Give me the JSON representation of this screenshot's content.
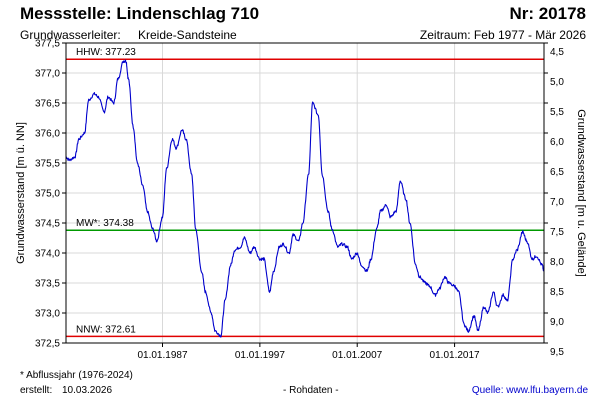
{
  "header": {
    "title": "Messstelle: Lindenschlag 710",
    "station_number": "Nr: 20178",
    "aquifer_label": "Grundwasserleiter:",
    "aquifer_value": "Kreide-Sandsteine",
    "period": "Zeitraum: Feb 1977 - Mär 2026"
  },
  "footer": {
    "footnote": "* Abflussjahr (1976-2024)",
    "created_label": "erstellt:",
    "created_value": "10.03.2026",
    "rawdata": "- Rohdaten -",
    "source": "Quelle: www.lfu.bayern.de"
  },
  "colors": {
    "series": "#0000cc",
    "hhw_nnw": "#e00000",
    "mw": "#009900",
    "grid": "#d9d9d9",
    "axis": "#000000"
  },
  "chart_data": {
    "type": "line",
    "ylabel_left": "Grundwasserstand [m ü. NN]",
    "ylabel_right": "Grundwasserstand [m u. Gelände]",
    "ylim_left": [
      372.5,
      377.5
    ],
    "yticks_left": [
      "377,5",
      "377,0",
      "376,5",
      "376,0",
      "375,5",
      "375,0",
      "374,5",
      "374,0",
      "373,5",
      "373,0",
      "372,5"
    ],
    "yticks_right": [
      "4,5",
      "5,0",
      "5,5",
      "6,0",
      "6,5",
      "7,0",
      "7,5",
      "8,0",
      "8,5",
      "9,0",
      "9,5"
    ],
    "xlim": [
      "1977-02-01",
      "2026-03-10"
    ],
    "xticks": [
      "01.01.1987",
      "01.01.1997",
      "01.01.2007",
      "01.01.2017"
    ],
    "grid": true,
    "reference_lines": [
      {
        "name": "HHW",
        "label": "HHW: 377.23",
        "value": 377.23
      },
      {
        "name": "MW*",
        "label": "MW*: 374.38",
        "value": 374.38
      },
      {
        "name": "NNW",
        "label": "NNW: 372.61",
        "value": 372.61
      }
    ],
    "series": [
      {
        "x": [
          "1977-02-01",
          "1977-06-01",
          "1978-01-01",
          "1978-06-01",
          "1979-01-01",
          "1979-06-01",
          "1980-01-01",
          "1980-06-01",
          "1981-01-01",
          "1981-06-01",
          "1982-01-01",
          "1982-06-01",
          "1983-01-01",
          "1983-04-01",
          "1983-07-01",
          "1984-01-01",
          "1984-06-01",
          "1985-01-01",
          "1985-06-01",
          "1986-01-01",
          "1986-06-01",
          "1987-01-01",
          "1987-06-01",
          "1988-01-01",
          "1988-06-01",
          "1989-01-01",
          "1989-06-01",
          "1990-01-01",
          "1990-06-01",
          "1991-01-01",
          "1991-06-01",
          "1992-01-01",
          "1992-06-01",
          "1993-01-01",
          "1993-06-01",
          "1994-01-01",
          "1994-06-01",
          "1995-01-01",
          "1995-06-01",
          "1996-01-01",
          "1996-06-01",
          "1997-01-01",
          "1997-06-01",
          "1998-01-01",
          "1998-06-01",
          "1999-01-01",
          "1999-06-01",
          "2000-01-01",
          "2000-06-01",
          "2001-01-01",
          "2001-06-01",
          "2002-01-01",
          "2002-06-01",
          "2003-01-01",
          "2003-06-01",
          "2004-01-01",
          "2004-06-01",
          "2005-01-01",
          "2005-06-01",
          "2006-01-01",
          "2006-06-01",
          "2007-01-01",
          "2007-06-01",
          "2008-01-01",
          "2008-06-01",
          "2009-01-01",
          "2009-06-01",
          "2010-01-01",
          "2010-06-01",
          "2011-01-01",
          "2011-06-01",
          "2012-01-01",
          "2012-06-01",
          "2013-01-01",
          "2013-06-01",
          "2014-01-01",
          "2014-06-01",
          "2015-01-01",
          "2015-06-01",
          "2016-01-01",
          "2016-06-01",
          "2017-01-01",
          "2017-06-01",
          "2018-01-01",
          "2018-06-01",
          "2019-01-01",
          "2019-06-01",
          "2020-01-01",
          "2020-06-01",
          "2021-01-01",
          "2021-06-01",
          "2022-01-01",
          "2022-06-01",
          "2023-01-01",
          "2023-06-01",
          "2024-01-01",
          "2024-06-01",
          "2025-01-01",
          "2025-06-01",
          "2026-01-01",
          "2026-03-01"
        ],
        "values": [
          375.6,
          375.55,
          375.6,
          375.9,
          376.0,
          376.55,
          376.65,
          376.6,
          376.35,
          376.6,
          376.5,
          376.9,
          377.2,
          377.2,
          376.9,
          376.1,
          375.5,
          375.1,
          374.7,
          374.4,
          374.2,
          374.6,
          375.4,
          375.9,
          375.75,
          376.05,
          375.9,
          375.3,
          374.4,
          373.7,
          373.35,
          373.0,
          372.7,
          372.62,
          373.2,
          373.8,
          374.05,
          374.1,
          374.25,
          374.0,
          374.1,
          373.9,
          373.9,
          373.35,
          373.7,
          374.1,
          374.15,
          374.0,
          374.3,
          374.2,
          374.5,
          375.3,
          376.5,
          376.3,
          375.3,
          374.7,
          374.4,
          374.1,
          374.15,
          374.1,
          373.9,
          374.0,
          373.8,
          373.7,
          373.9,
          374.4,
          374.7,
          374.8,
          374.6,
          374.7,
          375.2,
          374.9,
          374.5,
          373.8,
          373.6,
          373.5,
          373.45,
          373.3,
          373.4,
          373.6,
          373.5,
          373.45,
          373.35,
          372.8,
          372.7,
          372.95,
          372.7,
          373.1,
          373.0,
          373.35,
          373.1,
          373.3,
          373.2,
          373.9,
          374.05,
          374.35,
          374.2,
          373.9,
          373.95,
          373.8,
          373.7
        ]
      }
    ]
  }
}
